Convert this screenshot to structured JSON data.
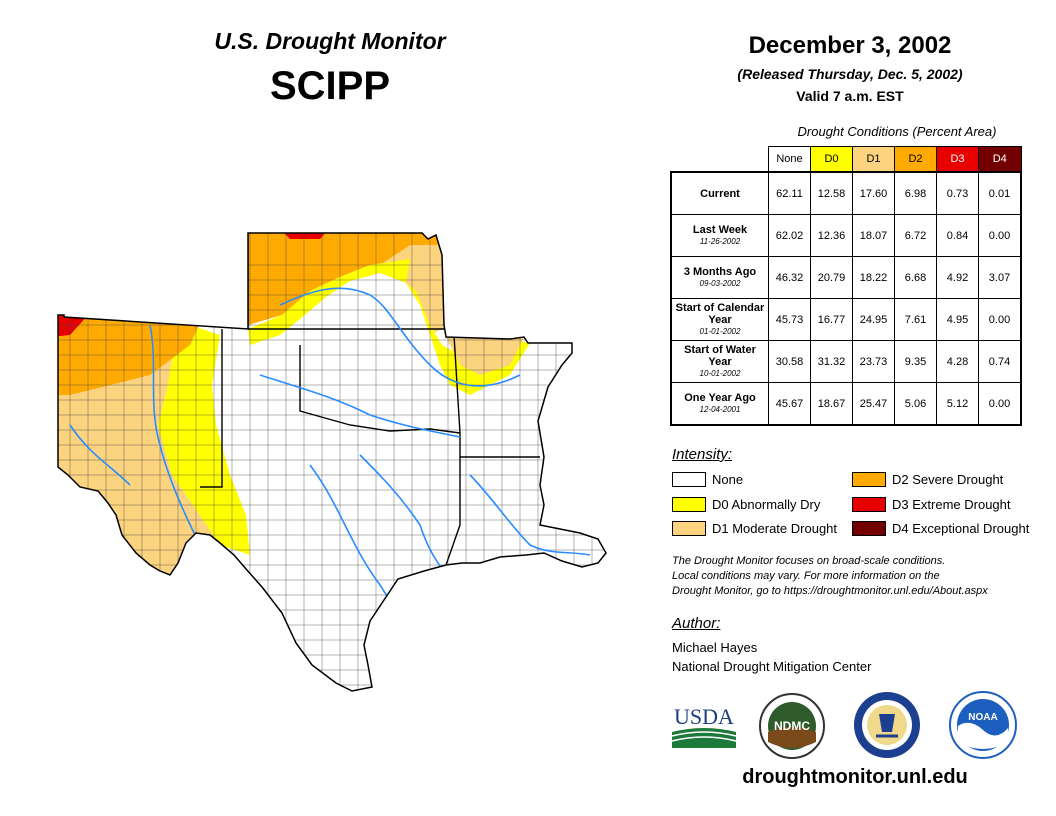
{
  "header": {
    "title": "U.S. Drought Monitor",
    "region": "SCIPP",
    "date": "December 3, 2002",
    "released": "(Released Thursday, Dec. 5, 2002)",
    "valid": "Valid 7 a.m. EST"
  },
  "table": {
    "caption": "Drought Conditions (Percent Area)",
    "columns": [
      {
        "label": "None",
        "color": "#ffffff",
        "text": "#000000"
      },
      {
        "label": "D0",
        "color": "#ffff00",
        "text": "#000000"
      },
      {
        "label": "D1",
        "color": "#fcd37f",
        "text": "#000000"
      },
      {
        "label": "D2",
        "color": "#ffaa00",
        "text": "#000000"
      },
      {
        "label": "D3",
        "color": "#e60000",
        "text": "#ffffff"
      },
      {
        "label": "D4",
        "color": "#730000",
        "text": "#ffffff"
      }
    ],
    "rows": [
      {
        "label": "Current",
        "sub": "",
        "values": [
          "62.11",
          "12.58",
          "17.60",
          "6.98",
          "0.73",
          "0.01"
        ]
      },
      {
        "label": "Last Week",
        "sub": "11-26-2002",
        "values": [
          "62.02",
          "12.36",
          "18.07",
          "6.72",
          "0.84",
          "0.00"
        ]
      },
      {
        "label": "3 Months Ago",
        "sub": "09-03-2002",
        "values": [
          "46.32",
          "20.79",
          "18.22",
          "6.68",
          "4.92",
          "3.07"
        ]
      },
      {
        "label": "Start of Calendar Year",
        "sub": "01-01-2002",
        "values": [
          "45.73",
          "16.77",
          "24.95",
          "7.61",
          "4.95",
          "0.00"
        ]
      },
      {
        "label": "Start of Water Year",
        "sub": "10-01-2002",
        "values": [
          "30.58",
          "31.32",
          "23.73",
          "9.35",
          "4.28",
          "0.74"
        ]
      },
      {
        "label": "One Year Ago",
        "sub": "12-04-2001",
        "values": [
          "45.67",
          "18.67",
          "25.47",
          "5.06",
          "5.12",
          "0.00"
        ]
      }
    ]
  },
  "legend": {
    "title": "Intensity:",
    "items": [
      {
        "label": "None",
        "color": "#ffffff"
      },
      {
        "label": "D0 Abnormally Dry",
        "color": "#ffff00"
      },
      {
        "label": "D1 Moderate Drought",
        "color": "#fcd37f"
      },
      {
        "label": "D2 Severe Drought",
        "color": "#ffaa00"
      },
      {
        "label": "D3 Extreme Drought",
        "color": "#e60000"
      },
      {
        "label": "D4 Exceptional Drought",
        "color": "#730000"
      }
    ]
  },
  "note": {
    "line1": "The Drought Monitor focuses on broad-scale conditions.",
    "line2": "Local conditions may vary. For more information on the",
    "line3": "Drought Monitor, go to https://droughtmonitor.unl.edu/About.aspx"
  },
  "author": {
    "heading": "Author:",
    "name": "Michael Hayes",
    "org": "National Drought Mitigation Center"
  },
  "logos": {
    "usda": "USDA",
    "ndmc": "NDMC",
    "noaa": "NOAA"
  },
  "url": "droughtmonitor.unl.edu",
  "icons": [
    "usda-logo-icon",
    "ndmc-logo-icon",
    "commerce-seal-icon",
    "noaa-logo-icon"
  ]
}
